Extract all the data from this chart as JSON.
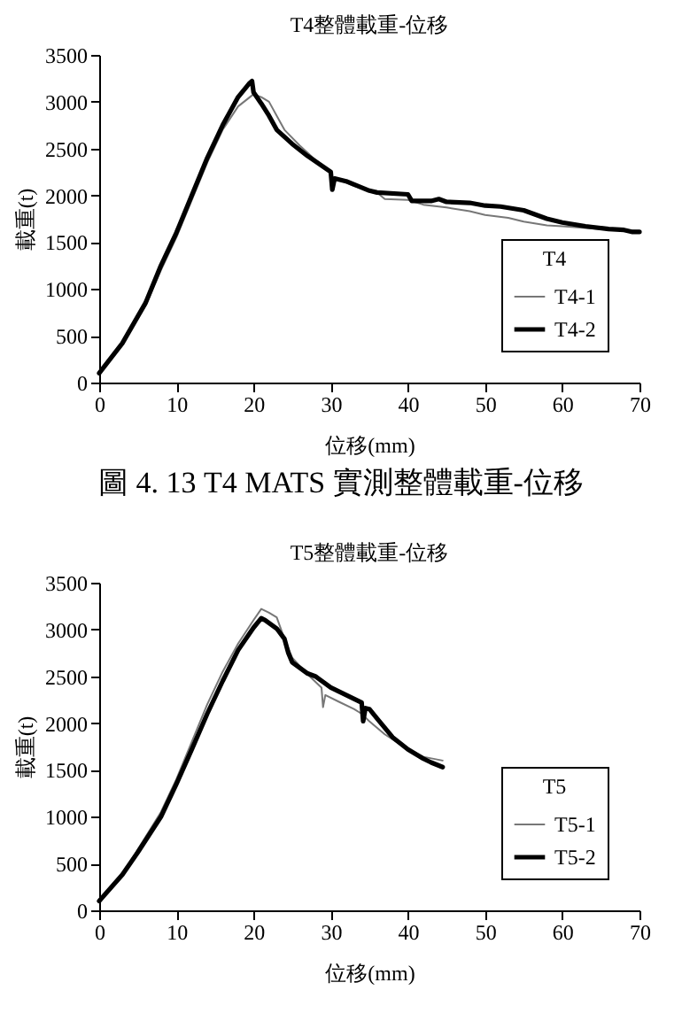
{
  "chart_data": [
    {
      "type": "line",
      "title": "T4整體載重-位移",
      "xlabel": "位移(mm)",
      "ylabel": "載重(t)",
      "legend_title": "T4",
      "legend": "bottom right",
      "xlim": [
        0,
        70
      ],
      "xticks": [
        0,
        10,
        20,
        30,
        40,
        50,
        60,
        70
      ],
      "ylim": [
        0,
        3500
      ],
      "yticks": [
        0,
        500,
        1000,
        1500,
        2000,
        2500,
        3000,
        3500
      ],
      "annotations": [
        "圖 4. 13 T4 MATS 實測整體載重-位移"
      ],
      "series": [
        {
          "name": "T4-1",
          "color": "#777777",
          "x": [
            0,
            3,
            6,
            8,
            10,
            12,
            14,
            16,
            18,
            20,
            21,
            22,
            23,
            24,
            26,
            28,
            30,
            30.3,
            30.7,
            33,
            36,
            37,
            40,
            42,
            45,
            48,
            50,
            53,
            55,
            58,
            60,
            65,
            70
          ],
          "values": [
            100,
            420,
            820,
            1200,
            1550,
            1950,
            2350,
            2700,
            2950,
            3080,
            3050,
            3000,
            2850,
            2700,
            2530,
            2380,
            2250,
            2080,
            2180,
            2100,
            2030,
            1960,
            1950,
            1900,
            1870,
            1830,
            1790,
            1760,
            1720,
            1680,
            1670,
            1640,
            1620
          ]
        },
        {
          "name": "T4-2",
          "color": "#000000",
          "x": [
            0,
            3,
            6,
            8,
            10,
            12,
            14,
            16,
            18,
            19.5,
            19.8,
            20,
            21,
            22,
            23,
            25,
            27,
            30,
            30.2,
            30.5,
            32,
            35,
            36,
            40,
            40.5,
            43,
            44,
            45,
            48,
            50,
            52,
            55,
            58,
            60,
            63,
            66,
            68,
            69,
            70
          ],
          "values": [
            100,
            420,
            850,
            1250,
            1600,
            2000,
            2400,
            2750,
            3050,
            3200,
            3220,
            3100,
            2980,
            2850,
            2700,
            2550,
            2420,
            2250,
            2060,
            2180,
            2150,
            2050,
            2030,
            2010,
            1940,
            1940,
            1960,
            1930,
            1920,
            1890,
            1880,
            1840,
            1750,
            1710,
            1670,
            1640,
            1630,
            1610,
            1610
          ]
        }
      ]
    },
    {
      "type": "line",
      "title": "T5整體載重-位移",
      "xlabel": "位移(mm)",
      "ylabel": "載重(t)",
      "legend_title": "T5",
      "legend": "bottom right",
      "xlim": [
        0,
        70
      ],
      "xticks": [
        0,
        10,
        20,
        30,
        40,
        50,
        60,
        70
      ],
      "ylim": [
        0,
        3500
      ],
      "yticks": [
        0,
        500,
        1000,
        1500,
        2000,
        2500,
        3000,
        3500
      ],
      "series": [
        {
          "name": "T5-1",
          "color": "#777777",
          "x": [
            0,
            3,
            5,
            8,
            10,
            12,
            14,
            16,
            18,
            20,
            21,
            22,
            23,
            24,
            25,
            27,
            28.8,
            29,
            29.3,
            31,
            33,
            34,
            35,
            37,
            40,
            42,
            44.5
          ],
          "values": [
            100,
            380,
            650,
            1050,
            1400,
            1800,
            2200,
            2550,
            2850,
            3100,
            3220,
            3180,
            3130,
            2900,
            2700,
            2520,
            2380,
            2170,
            2300,
            2230,
            2150,
            2100,
            2020,
            1880,
            1720,
            1640,
            1600
          ]
        },
        {
          "name": "T5-2",
          "color": "#000000",
          "x": [
            0,
            3,
            5,
            8,
            10,
            12,
            14,
            16,
            18,
            20,
            21,
            21.5,
            23,
            24,
            24.5,
            25,
            27,
            28,
            30,
            32,
            34,
            34.2,
            34.5,
            35,
            36,
            38,
            40,
            42,
            43,
            44.5
          ],
          "values": [
            100,
            380,
            620,
            1000,
            1350,
            1720,
            2100,
            2450,
            2780,
            3020,
            3120,
            3100,
            3010,
            2900,
            2750,
            2650,
            2530,
            2500,
            2380,
            2300,
            2220,
            2020,
            2160,
            2150,
            2050,
            1850,
            1720,
            1620,
            1580,
            1530
          ]
        }
      ]
    }
  ]
}
